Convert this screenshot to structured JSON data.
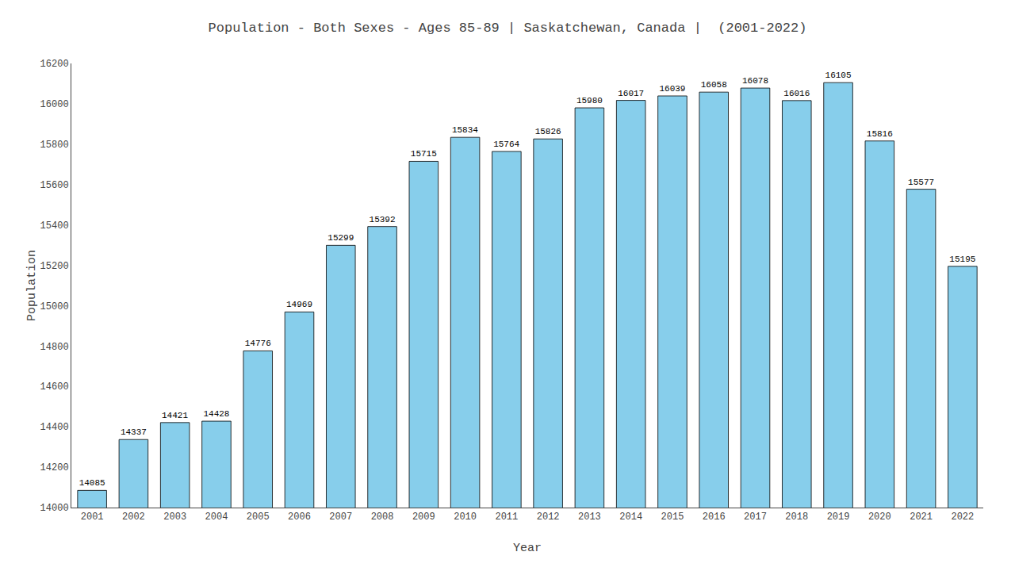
{
  "chart_data": {
    "type": "bar",
    "title": "Population - Both Sexes - Ages 85-89 | Saskatchewan, Canada |  (2001-2022)",
    "x_label": "Year",
    "y_label": "Population",
    "categories": [
      "2001",
      "2002",
      "2003",
      "2004",
      "2005",
      "2006",
      "2007",
      "2008",
      "2009",
      "2010",
      "2011",
      "2012",
      "2013",
      "2014",
      "2015",
      "2016",
      "2017",
      "2018",
      "2019",
      "2020",
      "2021",
      "2022"
    ],
    "values": [
      14085,
      14337,
      14421,
      14428,
      14776,
      14969,
      15299,
      15392,
      15715,
      15834,
      15764,
      15826,
      15980,
      16017,
      16039,
      16058,
      16078,
      16016,
      16105,
      15816,
      15577,
      15195
    ],
    "color": "#87CEEB",
    "ylim": [
      14000,
      16200
    ],
    "yticks": [
      14000,
      14200,
      14400,
      14600,
      14800,
      15000,
      15200,
      15400,
      15600,
      15800,
      16000,
      16200
    ],
    "grid": false,
    "data_labels": true
  }
}
